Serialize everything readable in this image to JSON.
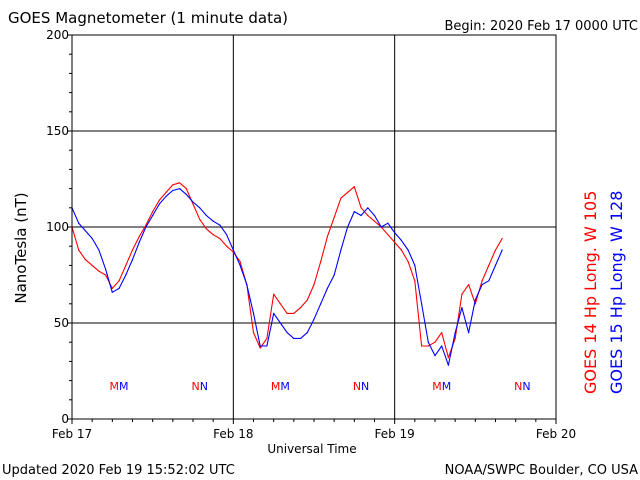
{
  "header": {
    "title": "GOES Magnetometer (1 minute data)",
    "begin": "Begin:  2020 Feb 17 0000 UTC"
  },
  "footer": {
    "updated": "Updated 2020 Feb 19 15:52:02 UTC",
    "source": "NOAA/SWPC Boulder, CO USA"
  },
  "colors": {
    "goes14": "#ff0000",
    "goes15": "#0000ff",
    "grid": "#000000"
  },
  "chart_data": {
    "type": "line",
    "title": "GOES Magnetometer (1 minute data)",
    "xlabel": "Universal Time",
    "ylabel": "NanoTesla (nT)",
    "xlim": [
      0,
      72
    ],
    "ylim": [
      0,
      200
    ],
    "x_unit": "hours since 2020 Feb 17 0000 UTC",
    "x_ticks": [
      {
        "x": 0,
        "label": "Feb 17"
      },
      {
        "x": 24,
        "label": "Feb 18"
      },
      {
        "x": 48,
        "label": "Feb 19"
      },
      {
        "x": 72,
        "label": "Feb 20"
      }
    ],
    "y_ticks": [
      0,
      50,
      100,
      150,
      200
    ],
    "grid": true,
    "legend_placement": "right, vertical",
    "series": [
      {
        "name": "GOES 14 Hp  Long. W 105",
        "color": "#ff0000",
        "x": [
          0,
          1,
          2,
          3,
          4,
          5,
          6,
          7,
          8,
          9,
          10,
          11,
          12,
          13,
          14,
          15,
          16,
          17,
          18,
          19,
          20,
          21,
          22,
          23,
          24,
          25,
          26,
          27,
          28,
          29,
          30,
          31,
          32,
          33,
          34,
          35,
          36,
          37,
          38,
          39,
          40,
          41,
          42,
          43,
          44,
          45,
          46,
          47,
          48,
          49,
          50,
          51,
          52,
          53,
          54,
          55,
          56,
          57,
          58,
          59,
          60,
          61,
          62,
          63,
          64
        ],
        "values": [
          100,
          88,
          83,
          80,
          77,
          75,
          68,
          72,
          80,
          88,
          95,
          101,
          108,
          114,
          118,
          122,
          123,
          120,
          112,
          104,
          99,
          96,
          94,
          90,
          87,
          82,
          70,
          45,
          37,
          42,
          65,
          60,
          55,
          55,
          58,
          62,
          70,
          82,
          95,
          105,
          115,
          118,
          121,
          110,
          106,
          103,
          100,
          96,
          92,
          88,
          82,
          72,
          38,
          38,
          40,
          45,
          32,
          42,
          65,
          70,
          60,
          72,
          80,
          88,
          94
        ]
      },
      {
        "name": "GOES 15 Hp  Long. W 128",
        "color": "#0000ff",
        "x": [
          0,
          1,
          2,
          3,
          4,
          5,
          6,
          7,
          8,
          9,
          10,
          11,
          12,
          13,
          14,
          15,
          16,
          17,
          18,
          19,
          20,
          21,
          22,
          23,
          24,
          25,
          26,
          27,
          28,
          29,
          30,
          31,
          32,
          33,
          34,
          35,
          36,
          37,
          38,
          39,
          40,
          41,
          42,
          43,
          44,
          45,
          46,
          47,
          48,
          49,
          50,
          51,
          52,
          53,
          54,
          55,
          56,
          57,
          58,
          59,
          60,
          61,
          62,
          63,
          64
        ],
        "values": [
          110,
          102,
          98,
          94,
          88,
          78,
          66,
          68,
          75,
          83,
          92,
          100,
          106,
          112,
          116,
          119,
          120,
          117,
          113,
          110,
          106,
          103,
          101,
          96,
          88,
          80,
          70,
          55,
          38,
          38,
          55,
          50,
          45,
          42,
          42,
          45,
          52,
          60,
          68,
          75,
          88,
          100,
          108,
          106,
          110,
          106,
          100,
          102,
          97,
          93,
          88,
          80,
          60,
          40,
          33,
          38,
          28,
          45,
          58,
          45,
          62,
          70,
          72,
          80,
          88
        ]
      }
    ],
    "annotations": [
      {
        "x": 7,
        "label": "MM"
      },
      {
        "x": 19,
        "label": "NN"
      },
      {
        "x": 31,
        "label": "MM"
      },
      {
        "x": 43,
        "label": "NN"
      },
      {
        "x": 55,
        "label": "MM"
      },
      {
        "x": 67,
        "label": "NN"
      }
    ]
  }
}
